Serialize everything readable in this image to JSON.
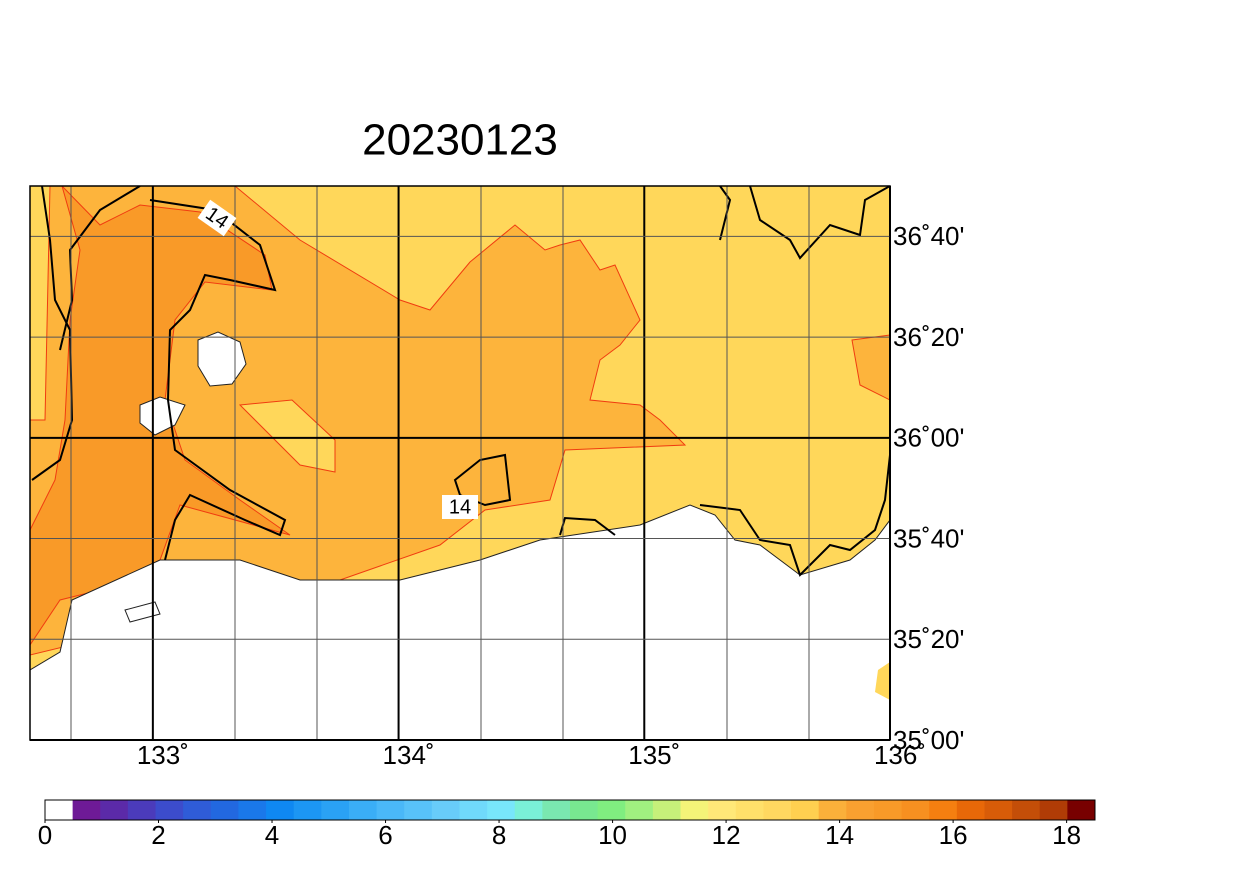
{
  "title": "20230123",
  "map": {
    "lonlim": [
      132.5,
      136
    ],
    "latlim": [
      35,
      36.8333
    ],
    "lon_ticks": [
      {
        "value": 133,
        "label": "133˚"
      },
      {
        "value": 134,
        "label": "134˚"
      },
      {
        "value": 135,
        "label": "135˚"
      },
      {
        "value": 136,
        "label": "136˚"
      }
    ],
    "lat_ticks": [
      {
        "value": 36.6667,
        "label": "36˚40'"
      },
      {
        "value": 36.3333,
        "label": "36˚20'"
      },
      {
        "value": 36,
        "label": "36˚00'"
      },
      {
        "value": 35.6667,
        "label": "35˚40'"
      },
      {
        "value": 35.3333,
        "label": "35˚20'"
      },
      {
        "value": 35,
        "label": "35˚00'"
      }
    ],
    "contour_labels": [
      "14",
      "14"
    ]
  },
  "colorbar": {
    "lim": [
      0,
      18.5
    ],
    "ticks": [
      0,
      2,
      4,
      6,
      8,
      10,
      12,
      14,
      16,
      18
    ],
    "colors": [
      "#ffffff",
      "#6e1a96",
      "#5b2aa8",
      "#4b3bbb",
      "#3c4ccc",
      "#2f5cd8",
      "#2268e0",
      "#1a78ea",
      "#0f88f2",
      "#1c96f4",
      "#2aa2f5",
      "#3aaef6",
      "#4ab8f8",
      "#58c2f9",
      "#68ccfa",
      "#70dafb",
      "#78e6fb",
      "#7af0d8",
      "#7ae8b0",
      "#78e890",
      "#80ee80",
      "#a0f080",
      "#c6f07a",
      "#f4f478",
      "#ffe878",
      "#ffe06a",
      "#ffd860",
      "#ffd050",
      "#fbb03a",
      "#f9a030",
      "#f89a28",
      "#f79020",
      "#f57f10",
      "#e86808",
      "#d85c08",
      "#c44e08",
      "#b03c06",
      "#780000"
    ]
  }
}
